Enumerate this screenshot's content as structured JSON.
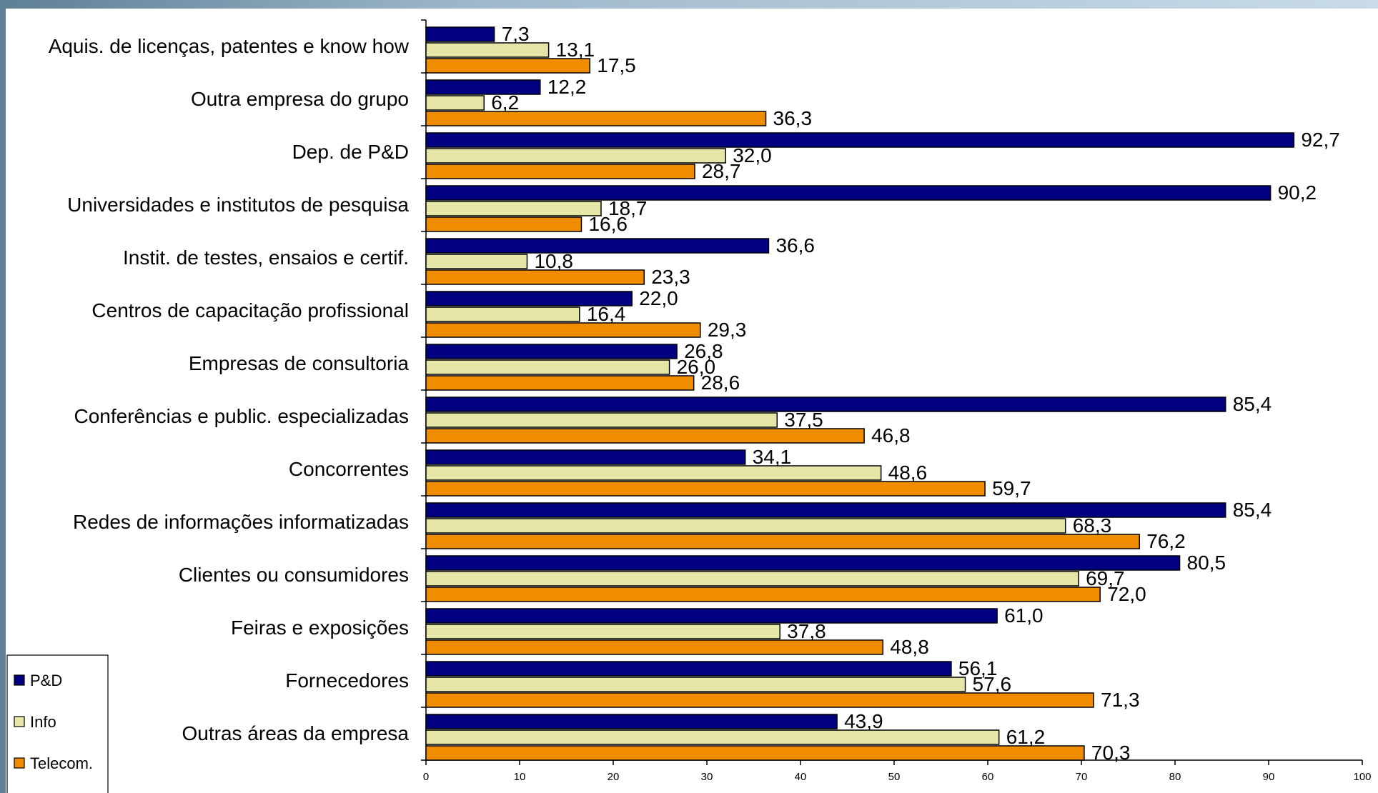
{
  "chart_data": {
    "type": "bar",
    "orientation": "horizontal",
    "title": "",
    "xlabel": "",
    "ylabel": "",
    "xlim": [
      0,
      100
    ],
    "x_ticks": [
      "0",
      "10",
      "20",
      "30",
      "40",
      "50",
      "60",
      "70",
      "80",
      "90",
      "100"
    ],
    "grid": false,
    "legend_position": "bottom-left",
    "categories": [
      "Aquis. de licenças, patentes e know how",
      "Outra empresa do grupo",
      "Dep. de P&D",
      "Universidades e institutos de pesquisa",
      "Instit. de testes, ensaios e certif.",
      "Centros de capacitação profissional",
      "Empresas de consultoria",
      "Conferências e public. especializadas",
      "Concorrentes",
      "Redes de informações informatizadas",
      "Clientes ou consumidores",
      "Feiras e exposições",
      "Fornecedores",
      "Outras áreas da empresa"
    ],
    "series": [
      {
        "name": "P&D",
        "color": "#000080",
        "values": [
          7.3,
          12.2,
          92.7,
          90.2,
          36.6,
          22.0,
          26.8,
          85.4,
          34.1,
          85.4,
          80.5,
          61.0,
          56.1,
          43.9
        ],
        "labels": [
          "7,3",
          "12,2",
          "92,7",
          "90,2",
          "36,6",
          "22,0",
          "26,8",
          "85,4",
          "34,1",
          "85,4",
          "80,5",
          "61,0",
          "56,1",
          "43,9"
        ]
      },
      {
        "name": "Info",
        "color": "#e6e6a8",
        "values": [
          13.1,
          6.2,
          32.0,
          18.7,
          10.8,
          16.4,
          26.0,
          37.5,
          48.6,
          68.3,
          69.7,
          37.8,
          57.6,
          61.2
        ],
        "labels": [
          "13,1",
          "6,2",
          "32,0",
          "18,7",
          "10,8",
          "16,4",
          "26,0",
          "37,5",
          "48,6",
          "68,3",
          "69,7",
          "37,8",
          "57,6",
          "61,2"
        ]
      },
      {
        "name": "Telecom.",
        "color": "#f08c00",
        "values": [
          17.5,
          36.3,
          28.7,
          16.6,
          23.3,
          29.3,
          28.6,
          46.8,
          59.7,
          76.2,
          72.0,
          48.8,
          71.3,
          70.3
        ],
        "labels": [
          "17,5",
          "36,3",
          "28,7",
          "16,6",
          "23,3",
          "29,3",
          "28,6",
          "46,8",
          "59,7",
          "76,2",
          "72,0",
          "48,8",
          "71,3",
          "70,3"
        ]
      }
    ]
  }
}
